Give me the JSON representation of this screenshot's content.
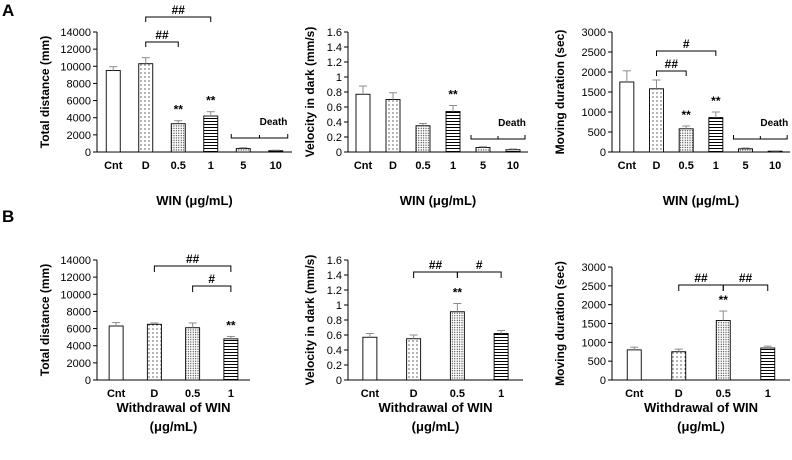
{
  "panel_labels": [
    "A",
    "B"
  ],
  "colors": {
    "ink": "#000000",
    "error_bar": "#8c8c8c",
    "bar_fill": "#ffffff"
  },
  "chart_data": [
    {
      "type": "bar",
      "panel": "A",
      "ylabel": "Total distance (mm)",
      "xlabel": "WIN (μg/mL)",
      "ylim": [
        0,
        14000
      ],
      "yticks": [
        0,
        2000,
        4000,
        6000,
        8000,
        10000,
        12000,
        14000
      ],
      "categories": [
        "Cnt",
        "D",
        "0.5",
        "1",
        "5",
        "10"
      ],
      "values": [
        9500,
        10300,
        3300,
        4200,
        400,
        150
      ],
      "errors": [
        450,
        700,
        350,
        500,
        100,
        60
      ],
      "patterns": [
        "plain",
        "dots",
        "dense-dots",
        "hlines",
        "dense-dots",
        "hlines"
      ],
      "marks": [
        "",
        "",
        "**",
        "**",
        "",
        ""
      ],
      "brackets": [
        {
          "from": 1,
          "to": 2,
          "label": "##"
        },
        {
          "from": 1,
          "to": 3,
          "label": "##"
        }
      ],
      "group_bracket": {
        "from": 4,
        "to": 5,
        "label": "Death"
      }
    },
    {
      "type": "bar",
      "panel": "A",
      "ylabel": "Velocity in dark (mm/s)",
      "xlabel": "WIN (μg/mL)",
      "ylim": [
        0,
        1.6
      ],
      "yticks": [
        0,
        0.2,
        0.4,
        0.6,
        0.8,
        1,
        1.2,
        1.4,
        1.6
      ],
      "categories": [
        "Cnt",
        "D",
        "0.5",
        "1",
        "5",
        "10"
      ],
      "values": [
        0.77,
        0.7,
        0.35,
        0.54,
        0.06,
        0.03
      ],
      "errors": [
        0.11,
        0.09,
        0.03,
        0.08,
        0.01,
        0.01
      ],
      "patterns": [
        "plain",
        "dots",
        "dense-dots",
        "hlines",
        "dense-dots",
        "hlines"
      ],
      "marks": [
        "",
        "",
        "",
        "**",
        "",
        ""
      ],
      "brackets": [],
      "group_bracket": {
        "from": 4,
        "to": 5,
        "label": "Death"
      }
    },
    {
      "type": "bar",
      "panel": "A",
      "ylabel": "Moving duration (sec)",
      "xlabel": "WIN (μg/mL)",
      "ylim": [
        0,
        3000
      ],
      "yticks": [
        0,
        500,
        1000,
        1500,
        2000,
        2500,
        3000
      ],
      "categories": [
        "Cnt",
        "D",
        "0.5",
        "1",
        "5",
        "10"
      ],
      "values": [
        1750,
        1580,
        580,
        860,
        80,
        20
      ],
      "errors": [
        280,
        220,
        70,
        140,
        20,
        8
      ],
      "patterns": [
        "plain",
        "dots",
        "dense-dots",
        "hlines",
        "dense-dots",
        "hlines"
      ],
      "marks": [
        "",
        "",
        "**",
        "**",
        "",
        ""
      ],
      "brackets": [
        {
          "from": 1,
          "to": 2,
          "label": "##"
        },
        {
          "from": 1,
          "to": 3,
          "label": "#"
        }
      ],
      "group_bracket": {
        "from": 4,
        "to": 5,
        "label": "Death"
      }
    },
    {
      "type": "bar",
      "panel": "B",
      "ylabel": "Total distance (mm)",
      "xlabel": "Withdrawal of WIN",
      "xlabel2": "(μg/mL)",
      "ylim": [
        0,
        14000
      ],
      "yticks": [
        0,
        2000,
        4000,
        6000,
        8000,
        10000,
        12000,
        14000
      ],
      "categories": [
        "Cnt",
        "D",
        "0.5",
        "1"
      ],
      "values": [
        6300,
        6500,
        6100,
        4800
      ],
      "errors": [
        400,
        150,
        550,
        280
      ],
      "patterns": [
        "plain",
        "dots",
        "dense-dots",
        "hlines"
      ],
      "marks": [
        "",
        "",
        "",
        "**"
      ],
      "brackets": [
        {
          "from": 1,
          "to": 3,
          "label": "##"
        },
        {
          "from": 2,
          "to": 3,
          "label": "#"
        }
      ]
    },
    {
      "type": "bar",
      "panel": "B",
      "ylabel": "Velocity in dark (mm/s)",
      "xlabel": "Withdrawal of WIN",
      "xlabel2": "(μg/mL)",
      "ylim": [
        0,
        1.6
      ],
      "yticks": [
        0,
        0.2,
        0.4,
        0.6,
        0.8,
        1,
        1.2,
        1.4,
        1.6
      ],
      "categories": [
        "Cnt",
        "D",
        "0.5",
        "1"
      ],
      "values": [
        0.57,
        0.55,
        0.91,
        0.62
      ],
      "errors": [
        0.05,
        0.05,
        0.11,
        0.04
      ],
      "patterns": [
        "plain",
        "dots",
        "dense-dots",
        "hlines"
      ],
      "marks": [
        "",
        "",
        "**",
        ""
      ],
      "brackets": [
        {
          "from": 1,
          "to": 2,
          "label": "##"
        },
        {
          "from": 2,
          "to": 3,
          "label": "#"
        }
      ]
    },
    {
      "type": "bar",
      "panel": "B",
      "ylabel": "Moving duration (sec)",
      "xlabel": "Withdrawal of WIN",
      "xlabel2": "(μg/mL)",
      "ylim": [
        0,
        3000
      ],
      "yticks": [
        0,
        500,
        1000,
        1500,
        2000,
        2500,
        3000
      ],
      "categories": [
        "Cnt",
        "D",
        "0.5",
        "1"
      ],
      "values": [
        800,
        750,
        1580,
        850
      ],
      "errors": [
        70,
        70,
        250,
        50
      ],
      "patterns": [
        "plain",
        "dots",
        "dense-dots",
        "hlines"
      ],
      "marks": [
        "",
        "",
        "**",
        ""
      ],
      "brackets": [
        {
          "from": 1,
          "to": 2,
          "label": "##"
        },
        {
          "from": 2,
          "to": 3,
          "label": "##"
        }
      ]
    }
  ]
}
